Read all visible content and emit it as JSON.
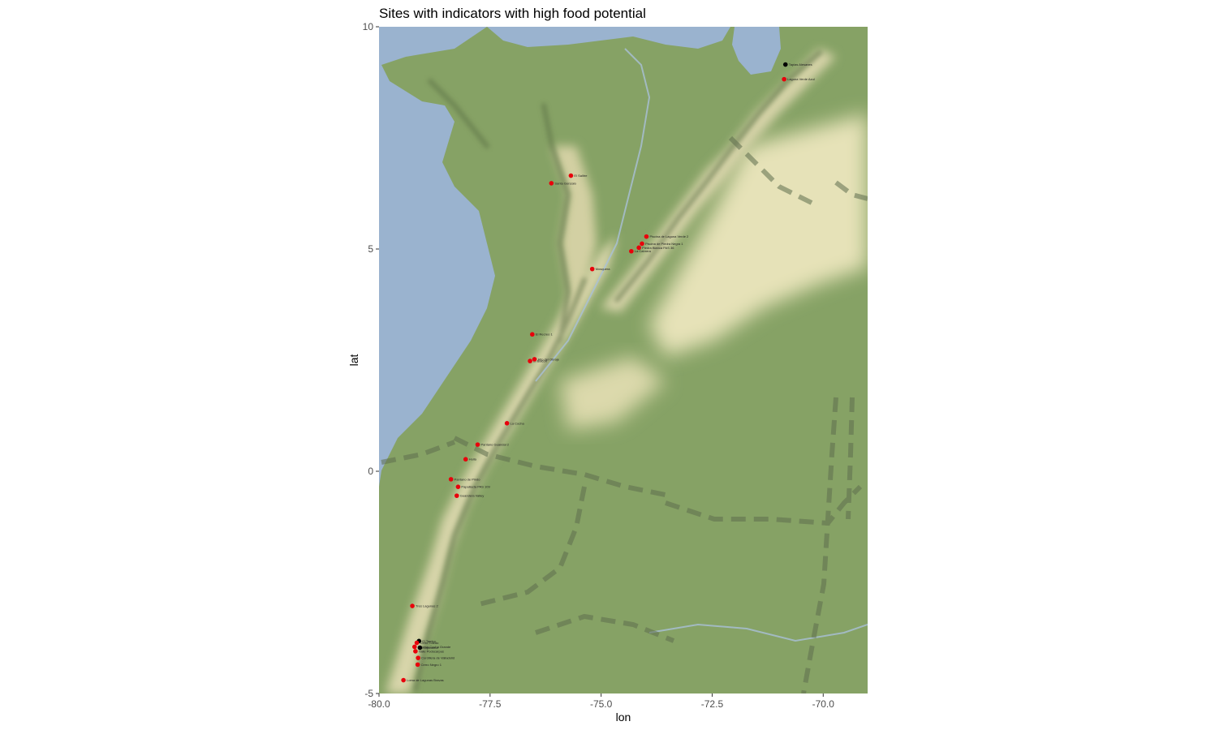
{
  "chart_data": {
    "type": "scatter",
    "title": "Sites with indicators with high food potential",
    "xlabel": "lon",
    "ylabel": "lat",
    "xlim": [
      -80.0,
      -69.0
    ],
    "ylim": [
      -5.0,
      10.0
    ],
    "xticks": [
      {
        "value": -80.0,
        "label": "-80.0"
      },
      {
        "value": -77.5,
        "label": "-77.5"
      },
      {
        "value": -75.0,
        "label": "-75.0"
      },
      {
        "value": -72.5,
        "label": "-72.5"
      },
      {
        "value": -70.0,
        "label": "-70.0"
      }
    ],
    "yticks": [
      {
        "value": -5,
        "label": "-5"
      },
      {
        "value": 0,
        "label": "0"
      },
      {
        "value": 5,
        "label": "5"
      },
      {
        "value": 10,
        "label": "10"
      }
    ],
    "grid": false,
    "basemap": "terrain",
    "colors": {
      "water": "#9ab3cf",
      "lowland": "#8ea86b",
      "highland": "#dedcb4",
      "red_point": "#e8000b",
      "black_point": "#000000"
    },
    "points": [
      {
        "lon": -70.85,
        "lat": 9.15,
        "color": "black",
        "label": "Tapias Alesanes"
      },
      {
        "lon": -70.88,
        "lat": 8.82,
        "color": "red",
        "label": "Laguna Verde Azul"
      },
      {
        "lon": -75.68,
        "lat": 6.65,
        "color": "red",
        "label": "El Salitre"
      },
      {
        "lon": -76.12,
        "lat": 6.48,
        "color": "red",
        "label": "Santa Gonzalo"
      },
      {
        "lon": -73.98,
        "lat": 5.28,
        "color": "red",
        "label": "Piscina de Laguna Verde 2"
      },
      {
        "lon": -74.08,
        "lat": 5.12,
        "color": "red",
        "label": "Piscina de Piedra Negra 1"
      },
      {
        "lon": -74.15,
        "lat": 5.03,
        "color": "red",
        "label": "Piedra Blanca PAS 36"
      },
      {
        "lon": -74.32,
        "lat": 4.95,
        "color": "red",
        "label": "La Cabrera"
      },
      {
        "lon": -75.2,
        "lat": 4.55,
        "color": "red",
        "label": "Mosquera"
      },
      {
        "lon": -76.55,
        "lat": 3.08,
        "color": "red",
        "label": "El Recreo 1"
      },
      {
        "lon": -76.6,
        "lat": 2.48,
        "color": "red",
        "label": "El Balcón"
      },
      {
        "lon": -76.5,
        "lat": 2.52,
        "color": "red",
        "label": "Alto del Obraje"
      },
      {
        "lon": -77.12,
        "lat": 1.08,
        "color": "red",
        "label": "La Cocha"
      },
      {
        "lon": -77.78,
        "lat": 0.6,
        "color": "red",
        "label": "Pantano Guandal 2"
      },
      {
        "lon": -78.05,
        "lat": 0.27,
        "color": "red",
        "label": "Huila"
      },
      {
        "lon": -78.38,
        "lat": -0.18,
        "color": "red",
        "label": "Pantano de Pindo"
      },
      {
        "lon": -78.22,
        "lat": -0.35,
        "color": "red",
        "label": "Papallacta PAS 109"
      },
      {
        "lon": -78.25,
        "lat": -0.55,
        "color": "red",
        "label": "Guandera Valley"
      },
      {
        "lon": -79.25,
        "lat": -3.03,
        "color": "red",
        "label": "Tres Lagunas 2"
      },
      {
        "lon": -79.1,
        "lat": -3.82,
        "color": "black",
        "label": "El Tambo"
      },
      {
        "lon": -79.15,
        "lat": -3.86,
        "color": "red",
        "label": "Cerro Toledo"
      },
      {
        "lon": -79.2,
        "lat": -3.95,
        "color": "red",
        "label": "Laguna Cocha Grande"
      },
      {
        "lon": -79.08,
        "lat": -3.97,
        "color": "black",
        "label": "Cajanuma"
      },
      {
        "lon": -79.18,
        "lat": -4.05,
        "color": "red",
        "label": "Valle Podocarpus"
      },
      {
        "lon": -79.12,
        "lat": -4.2,
        "color": "red",
        "label": "Cordillera de Valladolid"
      },
      {
        "lon": -79.13,
        "lat": -4.35,
        "color": "red",
        "label": "Cerro Negro 1"
      },
      {
        "lon": -79.45,
        "lat": -4.7,
        "color": "red",
        "label": "Loma de Lagunas Bravas"
      }
    ]
  }
}
